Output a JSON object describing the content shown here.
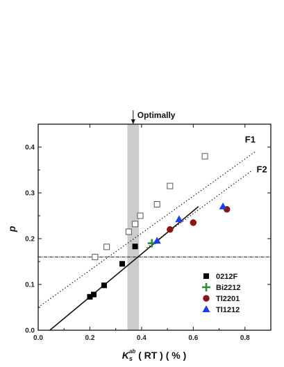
{
  "chart_data": {
    "type": "scatter",
    "xlabel_main": "K",
    "xlabel_sub": "s",
    "xlabel_sup": "ab",
    "xlabel_rest": " ( RT ) ( % )",
    "ylabel": "p",
    "xlim": [
      0.0,
      0.9
    ],
    "ylim": [
      0.0,
      0.45
    ],
    "xticks": [
      "0.0",
      "0.2",
      "0.4",
      "0.6",
      "0.8"
    ],
    "yticks": [
      "0.0",
      "0.1",
      "0.2",
      "0.3",
      "0.4"
    ],
    "xtick_values": [
      0.0,
      0.2,
      0.4,
      0.6,
      0.8
    ],
    "ytick_values": [
      0.0,
      0.1,
      0.2,
      0.3,
      0.4
    ],
    "grid": false,
    "legend_position": "bottom-right",
    "optimal_band": {
      "x_from": 0.345,
      "x_to": 0.39,
      "label": "Optimally"
    },
    "horizontal_reference_line": {
      "y": 0.16
    },
    "fit_lines": [
      {
        "name": "F1",
        "x": [
          0.0,
          0.84
        ],
        "y": [
          0.05,
          0.39
        ],
        "style": "dotted"
      },
      {
        "name": "F2",
        "x": [
          0.42,
          0.83
        ],
        "y": [
          0.18,
          0.35
        ],
        "style": "dotted"
      },
      {
        "name": "",
        "x": [
          0.045,
          0.62
        ],
        "y": [
          0.0,
          0.27
        ],
        "style": "solid"
      }
    ],
    "series": [
      {
        "name": "",
        "marker": "open-square",
        "color": "#555555",
        "x": [
          0.22,
          0.265,
          0.35,
          0.375,
          0.395,
          0.46,
          0.51,
          0.645
        ],
        "y": [
          0.16,
          0.182,
          0.215,
          0.232,
          0.25,
          0.275,
          0.315,
          0.38
        ]
      },
      {
        "name": "0212F",
        "marker": "filled-square",
        "color": "#000000",
        "x": [
          0.2,
          0.215,
          0.255,
          0.325,
          0.375
        ],
        "y": [
          0.073,
          0.078,
          0.098,
          0.145,
          0.183
        ]
      },
      {
        "name": "Bi2212",
        "marker": "plus",
        "color": "#2e8b2e",
        "x": [
          0.44
        ],
        "y": [
          0.19
        ]
      },
      {
        "name": "Tl2201",
        "marker": "circle",
        "color": "#8b1515",
        "x": [
          0.51,
          0.6,
          0.73
        ],
        "y": [
          0.22,
          0.235,
          0.264
        ]
      },
      {
        "name": "Tl1212",
        "marker": "triangle",
        "color": "#1f3fe6",
        "x": [
          0.46,
          0.545,
          0.715
        ],
        "y": [
          0.195,
          0.242,
          0.27
        ]
      }
    ]
  }
}
